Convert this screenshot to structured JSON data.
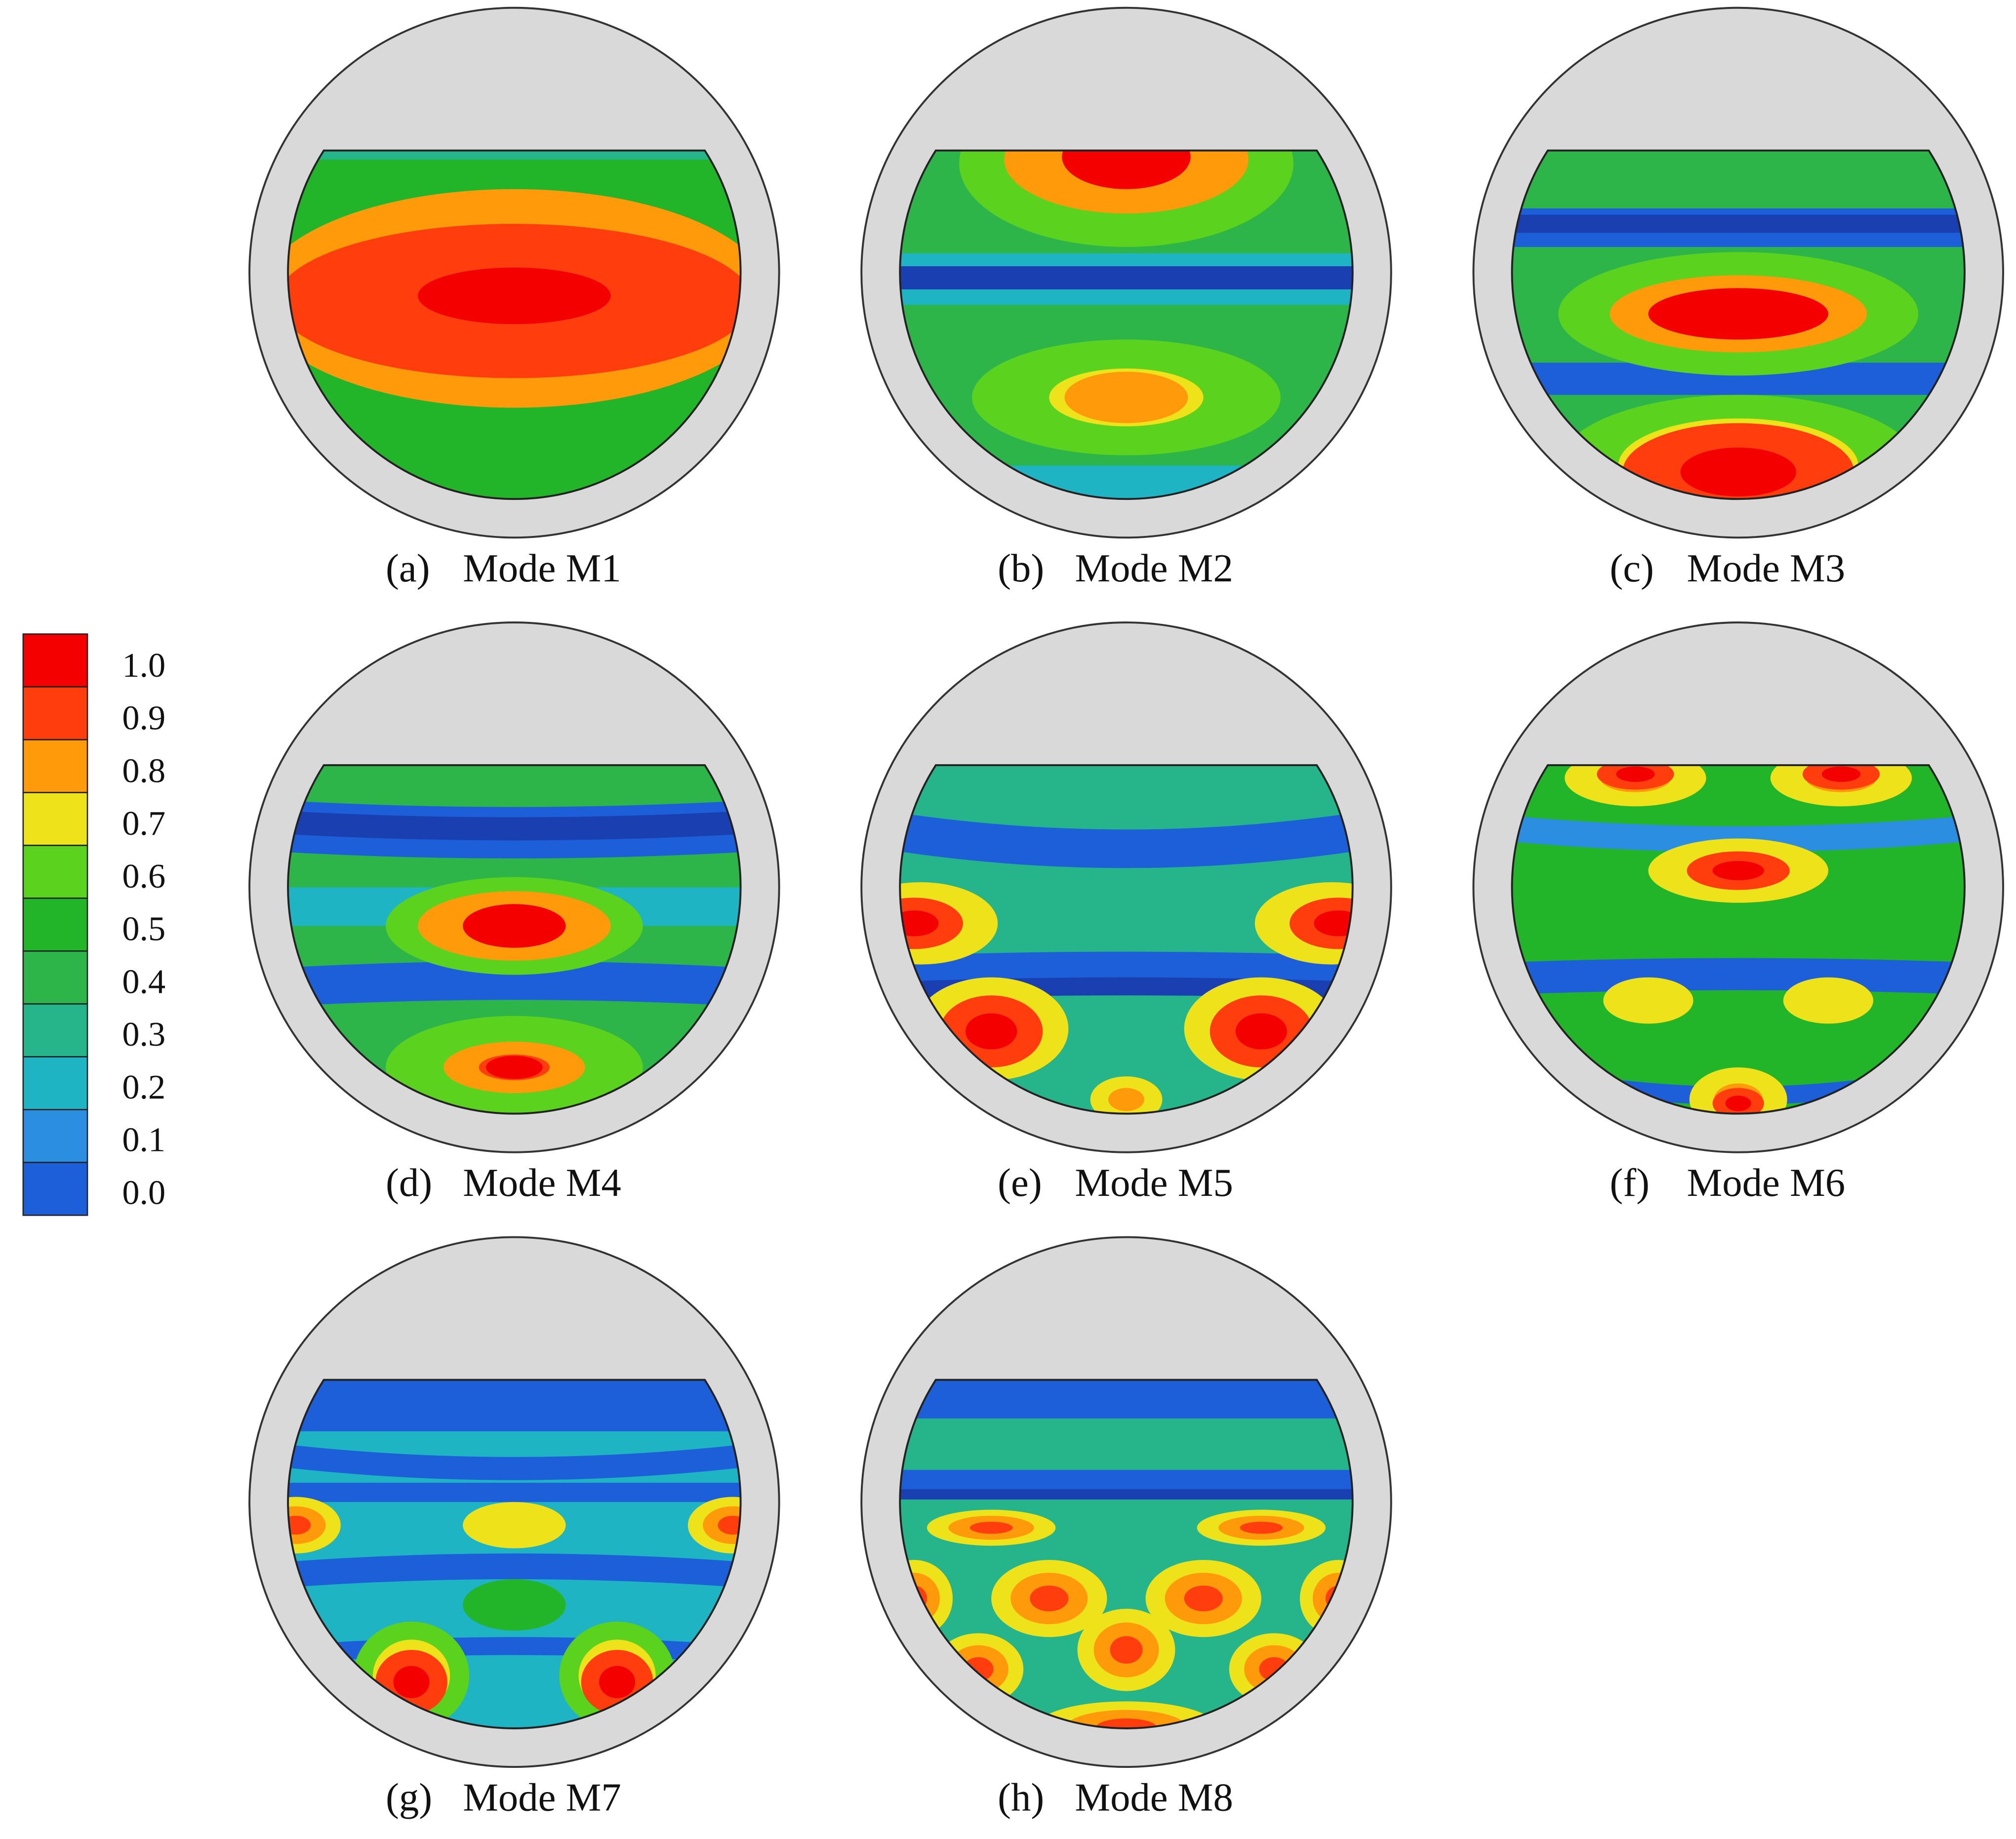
{
  "colorbar": {
    "labels": [
      "1.0",
      "0.9",
      "0.8",
      "0.7",
      "0.6",
      "0.5",
      "0.4",
      "0.3",
      "0.2",
      "0.1",
      "0.0"
    ]
  },
  "panels": [
    {
      "tag": "(a)",
      "title": "Mode M1"
    },
    {
      "tag": "(b)",
      "title": "Mode M2"
    },
    {
      "tag": "(c)",
      "title": "Mode M3"
    },
    {
      "tag": "(d)",
      "title": "Mode M4"
    },
    {
      "tag": "(e)",
      "title": "Mode M5"
    },
    {
      "tag": "(f)",
      "title": "Mode M6"
    },
    {
      "tag": "(g)",
      "title": "Mode M7"
    },
    {
      "tag": "(h)",
      "title": "Mode M8"
    }
  ]
}
